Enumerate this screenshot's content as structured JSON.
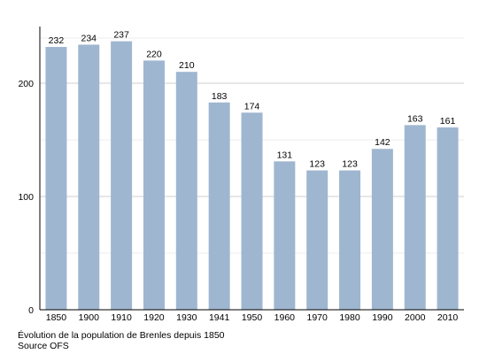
{
  "chart_data": {
    "type": "bar",
    "categories": [
      "1850",
      "1900",
      "1910",
      "1920",
      "1930",
      "1941",
      "1950",
      "1960",
      "1970",
      "1980",
      "1990",
      "2000",
      "2010"
    ],
    "values": [
      232,
      234,
      237,
      220,
      210,
      183,
      174,
      131,
      123,
      123,
      142,
      163,
      161
    ],
    "data_labels": [
      "232",
      "234",
      "237",
      "220",
      "210",
      "183",
      "174",
      "131",
      "123",
      "123",
      "142",
      "163",
      "161"
    ],
    "yticks": [
      0,
      100,
      200
    ],
    "ytick_labels": [
      "0",
      "100",
      "200"
    ],
    "ylim": [
      0,
      240
    ],
    "grid": true,
    "bar_color": "#9fb6d0",
    "grid_color": "#d9d9d9"
  },
  "caption": {
    "line1": "Évolution de la population de Brenles depuis 1850",
    "line2": "Source OFS"
  }
}
